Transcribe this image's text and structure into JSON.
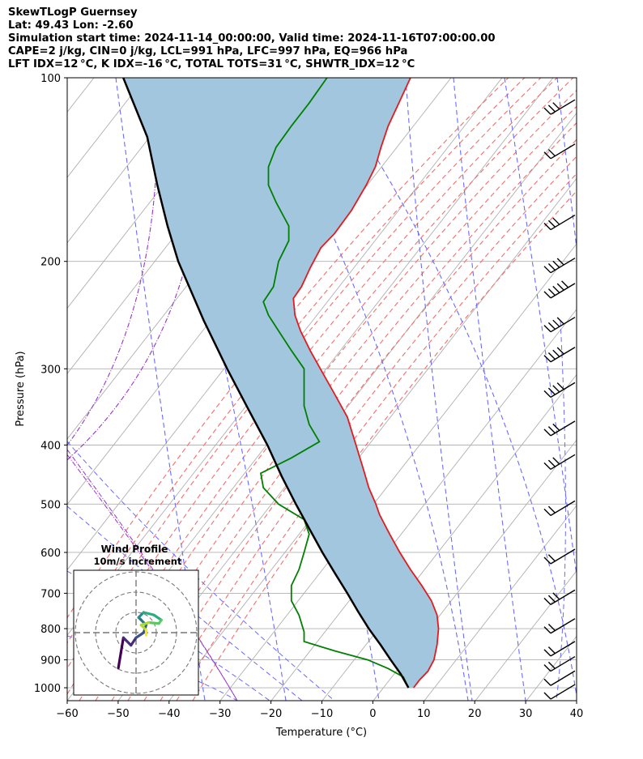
{
  "header": {
    "line1": "SkewTLogP Guernsey",
    "line2": "Lat: 49.43   Lon: -2.60",
    "line3": "Simulation start time: 2024-11-14_00:00:00, Valid time: 2024-11-16T07:00:00.00",
    "line4": "CAPE=2 j/kg, CIN=0 j/kg, LCL=991 hPa, LFC=997 hPa, EQ=966 hPa",
    "line5": "LFT IDX=12 °C, K IDX=-16 °C, TOTAL TOTS=31 °C, SHWTR_IDX=12 °C"
  },
  "colors": {
    "temperature": "#e41a1c",
    "dewpoint": "#008000",
    "parcel": "#000000",
    "cape_fill": "#a3c6df",
    "dry_adiabat": "#f46d6d",
    "moist_adiabat": "#6b6bff",
    "mixing_ratio": "#9933cc",
    "isotherm": "#b0b0b0",
    "grid": "#b0b0b0"
  },
  "chart_data": {
    "type": "skewt-logp",
    "xlabel": "Temperature (°C)",
    "ylabel": "Pressure (hPa)",
    "xlim": [
      -60,
      40
    ],
    "ylim": [
      1050,
      100
    ],
    "x_ticks": [
      -60,
      -50,
      -40,
      -30,
      -20,
      -10,
      0,
      10,
      20,
      30,
      40
    ],
    "x_tick_labels": [
      "−60",
      "−50",
      "−40",
      "−30",
      "−20",
      "−10",
      "0",
      "10",
      "20",
      "30",
      "40"
    ],
    "y_ticks": [
      1000,
      900,
      800,
      700,
      600,
      500,
      400,
      300,
      200,
      100
    ],
    "temperature_profile": [
      {
        "p": 1000,
        "x": 8.0
      },
      {
        "p": 970,
        "x": 9.2
      },
      {
        "p": 940,
        "x": 10.8
      },
      {
        "p": 900,
        "x": 12.0
      },
      {
        "p": 850,
        "x": 12.6
      },
      {
        "p": 800,
        "x": 12.9
      },
      {
        "p": 760,
        "x": 12.6
      },
      {
        "p": 720,
        "x": 11.5
      },
      {
        "p": 680,
        "x": 9.6
      },
      {
        "p": 640,
        "x": 7.4
      },
      {
        "p": 600,
        "x": 5.3
      },
      {
        "p": 560,
        "x": 3.3
      },
      {
        "p": 520,
        "x": 1.3
      },
      {
        "p": 500,
        "x": 0.6
      },
      {
        "p": 470,
        "x": -0.8
      },
      {
        "p": 440,
        "x": -1.8
      },
      {
        "p": 400,
        "x": -3.3
      },
      {
        "p": 360,
        "x": -5.0
      },
      {
        "p": 330,
        "x": -7.5
      },
      {
        "p": 300,
        "x": -10.3
      },
      {
        "p": 280,
        "x": -12.3
      },
      {
        "p": 260,
        "x": -14.2
      },
      {
        "p": 245,
        "x": -15.3
      },
      {
        "p": 230,
        "x": -15.6
      },
      {
        "p": 220,
        "x": -14.0
      },
      {
        "p": 205,
        "x": -12.3
      },
      {
        "p": 190,
        "x": -10.2
      },
      {
        "p": 180,
        "x": -7.5
      },
      {
        "p": 165,
        "x": -4.2
      },
      {
        "p": 150,
        "x": -1.3
      },
      {
        "p": 140,
        "x": 0.5
      },
      {
        "p": 130,
        "x": 1.6
      },
      {
        "p": 120,
        "x": 3.0
      },
      {
        "p": 110,
        "x": 5.1
      },
      {
        "p": 100,
        "x": 7.4
      }
    ],
    "dewpoint_profile": [
      {
        "p": 1000,
        "x": 7.0
      },
      {
        "p": 960,
        "x": 6.0
      },
      {
        "p": 930,
        "x": 3.0
      },
      {
        "p": 900,
        "x": -1.0
      },
      {
        "p": 870,
        "x": -7.5
      },
      {
        "p": 840,
        "x": -13.5
      },
      {
        "p": 810,
        "x": -13.5
      },
      {
        "p": 760,
        "x": -14.5
      },
      {
        "p": 720,
        "x": -16.0
      },
      {
        "p": 680,
        "x": -16.0
      },
      {
        "p": 640,
        "x": -14.5
      },
      {
        "p": 600,
        "x": -13.5
      },
      {
        "p": 560,
        "x": -12.5
      },
      {
        "p": 530,
        "x": -13.5
      },
      {
        "p": 500,
        "x": -18.5
      },
      {
        "p": 470,
        "x": -21.5
      },
      {
        "p": 445,
        "x": -22.0
      },
      {
        "p": 420,
        "x": -16.0
      },
      {
        "p": 395,
        "x": -10.5
      },
      {
        "p": 370,
        "x": -12.5
      },
      {
        "p": 345,
        "x": -13.5
      },
      {
        "p": 320,
        "x": -13.5
      },
      {
        "p": 300,
        "x": -13.5
      },
      {
        "p": 280,
        "x": -16.0
      },
      {
        "p": 260,
        "x": -18.5
      },
      {
        "p": 245,
        "x": -20.5
      },
      {
        "p": 233,
        "x": -21.5
      },
      {
        "p": 220,
        "x": -19.5
      },
      {
        "p": 200,
        "x": -18.5
      },
      {
        "p": 185,
        "x": -16.5
      },
      {
        "p": 175,
        "x": -16.5
      },
      {
        "p": 160,
        "x": -19.0
      },
      {
        "p": 150,
        "x": -20.5
      },
      {
        "p": 140,
        "x": -20.5
      },
      {
        "p": 130,
        "x": -19.0
      },
      {
        "p": 120,
        "x": -16.0
      },
      {
        "p": 110,
        "x": -12.5
      },
      {
        "p": 100,
        "x": -9.0
      }
    ],
    "parcel_profile": [
      {
        "p": 1000,
        "x": 7.0
      },
      {
        "p": 950,
        "x": 5.5
      },
      {
        "p": 900,
        "x": 3.5
      },
      {
        "p": 850,
        "x": 1.5
      },
      {
        "p": 800,
        "x": -0.8
      },
      {
        "p": 750,
        "x": -2.9
      },
      {
        "p": 700,
        "x": -5.0
      },
      {
        "p": 650,
        "x": -7.4
      },
      {
        "p": 600,
        "x": -9.9
      },
      {
        "p": 550,
        "x": -12.4
      },
      {
        "p": 500,
        "x": -15.1
      },
      {
        "p": 450,
        "x": -17.9
      },
      {
        "p": 400,
        "x": -20.7
      },
      {
        "p": 350,
        "x": -24.4
      },
      {
        "p": 300,
        "x": -28.6
      },
      {
        "p": 250,
        "x": -33.2
      },
      {
        "p": 200,
        "x": -38.2
      },
      {
        "p": 175,
        "x": -40.3
      },
      {
        "p": 150,
        "x": -42.3
      },
      {
        "p": 125,
        "x": -44.3
      },
      {
        "p": 100,
        "x": -49.0
      }
    ],
    "wind_barbs": [
      {
        "p": 110,
        "speed_kt": 25
      },
      {
        "p": 130,
        "speed_kt": 20
      },
      {
        "p": 170,
        "speed_kt": 30
      },
      {
        "p": 200,
        "speed_kt": 40
      },
      {
        "p": 220,
        "speed_kt": 45
      },
      {
        "p": 250,
        "speed_kt": 40
      },
      {
        "p": 280,
        "speed_kt": 35
      },
      {
        "p": 320,
        "speed_kt": 35
      },
      {
        "p": 370,
        "speed_kt": 30
      },
      {
        "p": 420,
        "speed_kt": 25
      },
      {
        "p": 500,
        "speed_kt": 20
      },
      {
        "p": 600,
        "speed_kt": 20
      },
      {
        "p": 700,
        "speed_kt": 25
      },
      {
        "p": 780,
        "speed_kt": 20
      },
      {
        "p": 850,
        "speed_kt": 15
      },
      {
        "p": 900,
        "speed_kt": 15
      },
      {
        "p": 950,
        "speed_kt": 10
      },
      {
        "p": 1000,
        "speed_kt": 10
      }
    ],
    "hodograph": {
      "title": "Wind Profile",
      "subtitle": "10m/s increment",
      "points": [
        {
          "u": -3.5,
          "v": -7.0
        },
        {
          "u": -3.0,
          "v": -4.0
        },
        {
          "u": -2.5,
          "v": -1.0
        },
        {
          "u": -1.0,
          "v": -2.5
        },
        {
          "u": 0.0,
          "v": -1.0
        },
        {
          "u": 1.5,
          "v": 0.0
        },
        {
          "u": 2.0,
          "v": 1.5
        },
        {
          "u": 1.0,
          "v": 2.5
        },
        {
          "u": 0.5,
          "v": 3.0
        },
        {
          "u": 1.5,
          "v": 4.0
        },
        {
          "u": 3.5,
          "v": 3.5
        },
        {
          "u": 5.0,
          "v": 2.5
        },
        {
          "u": 4.5,
          "v": 1.8
        },
        {
          "u": 2.5,
          "v": 2.0
        },
        {
          "u": 1.0,
          "v": 1.5
        },
        {
          "u": 2.0,
          "v": 0.5
        },
        {
          "u": 2.0,
          "v": -0.5
        }
      ]
    }
  }
}
